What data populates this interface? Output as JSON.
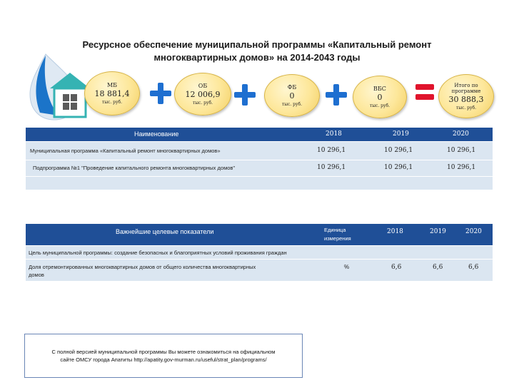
{
  "title_line1": "Ресурсное обеспечение муниципальной программы  «Капитальный ремонт",
  "title_line2": "многоквартирных домов» на 2014-2043 годы",
  "colors": {
    "header": "#1f4f97",
    "band": "#dbe6f1",
    "plus": "#1e6fd0",
    "circle": "#fde79a"
  },
  "funding": {
    "mb": {
      "label": "МБ",
      "value": "18 881,4",
      "unit": "тыс. руб."
    },
    "ob": {
      "label": "ОБ",
      "value": "12 006,9",
      "unit": "тыс. руб."
    },
    "fb": {
      "label": "ФБ",
      "value": "0",
      "unit": "тыс. руб."
    },
    "vbs": {
      "label": "ВБС",
      "value": "0",
      "unit": "тыс. руб."
    },
    "total": {
      "label": "Итого по программе",
      "value": "30 888,3",
      "unit": "тыс. руб."
    }
  },
  "table1": {
    "header": {
      "name": "Наименование",
      "y1": "2018",
      "y2": "2019",
      "y3": "2020"
    },
    "rows": [
      {
        "name": "Муниципальная программа «Капитальный ремонт многоквартирных домов»",
        "v1": "10 296,1",
        "v2": "10 296,1",
        "v3": "10 296,1"
      },
      {
        "name": "Подпрограмма №1 \"Проведение капитального ремонта многоквартирных домов\"",
        "v1": "10 296,1",
        "v2": "10 296,1",
        "v3": "10 296,1"
      }
    ]
  },
  "table2": {
    "header": {
      "name": "Важнейшие целевые показатели",
      "unit1": "Единица",
      "unit2": "измерения",
      "y1": "2018",
      "y2": "2019",
      "y3": "2020"
    },
    "goal": "Цель муниципальной программы: создание безопасных и благоприятных условий проживания граждан",
    "row": {
      "name1": "Доля отремонтированных многоквартирных домов от общего количества многоквартирных",
      "name2": "домов",
      "unit": "%",
      "v1": "6,6",
      "v2": "6,6",
      "v3": "6,6"
    }
  },
  "note_line1": "С полной версией муниципальной программы Вы можете ознакомиться на официальном",
  "note_line2": "сайте ОМСУ города Апатиты http://apatity.gov-murman.ru/useful/strat_plan/programs/"
}
